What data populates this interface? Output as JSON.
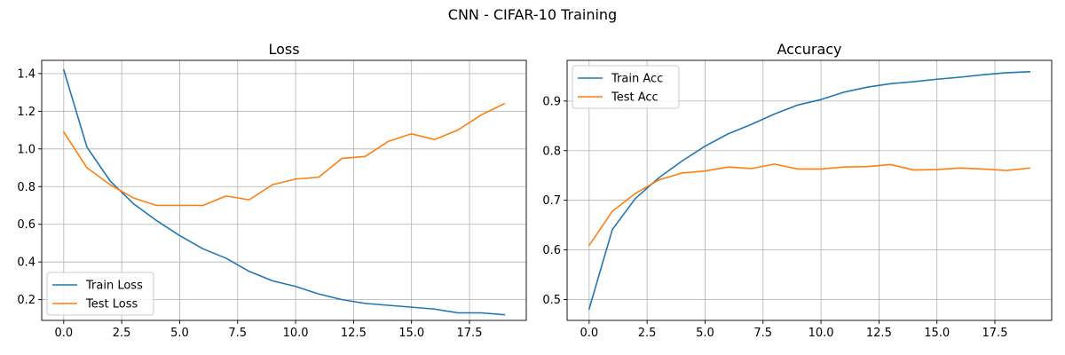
{
  "figure": {
    "suptitle": "CNN - CIFAR-10 Training"
  },
  "chart_data": [
    {
      "type": "line",
      "title": "Loss",
      "xlabel": "",
      "ylabel": "",
      "x": [
        0,
        1,
        2,
        3,
        4,
        5,
        6,
        7,
        8,
        9,
        10,
        11,
        12,
        13,
        14,
        15,
        16,
        17,
        18,
        19
      ],
      "xlim": [
        -0.95,
        19.95
      ],
      "ylim": [
        0.09,
        1.47
      ],
      "xticks": [
        0,
        2.5,
        5,
        7.5,
        10,
        12.5,
        15,
        17.5
      ],
      "xtick_labels": [
        "0.0",
        "2.5",
        "5.0",
        "7.5",
        "10.0",
        "12.5",
        "15.0",
        "17.5"
      ],
      "yticks": [
        0.2,
        0.4,
        0.6,
        0.8,
        1.0,
        1.2,
        1.4
      ],
      "ytick_labels": [
        "0.2",
        "0.4",
        "0.6",
        "0.8",
        "1.0",
        "1.2",
        "1.4"
      ],
      "grid": true,
      "legend_position": "lower-left",
      "series": [
        {
          "name": "Train Loss",
          "color": "#1f77b4",
          "values": [
            1.42,
            1.01,
            0.83,
            0.71,
            0.62,
            0.54,
            0.47,
            0.42,
            0.35,
            0.3,
            0.27,
            0.23,
            0.2,
            0.18,
            0.17,
            0.16,
            0.15,
            0.13,
            0.13,
            0.12
          ]
        },
        {
          "name": "Test Loss",
          "color": "#ff7f0e",
          "values": [
            1.09,
            0.9,
            0.81,
            0.74,
            0.7,
            0.7,
            0.7,
            0.75,
            0.73,
            0.81,
            0.84,
            0.85,
            0.95,
            0.96,
            1.04,
            1.08,
            1.05,
            1.1,
            1.18,
            1.24
          ]
        }
      ]
    },
    {
      "type": "line",
      "title": "Accuracy",
      "xlabel": "",
      "ylabel": "",
      "x": [
        0,
        1,
        2,
        3,
        4,
        5,
        6,
        7,
        8,
        9,
        10,
        11,
        12,
        13,
        14,
        15,
        16,
        17,
        18,
        19
      ],
      "xlim": [
        -0.95,
        19.95
      ],
      "ylim": [
        0.458,
        0.982
      ],
      "xticks": [
        0,
        2.5,
        5,
        7.5,
        10,
        12.5,
        15,
        17.5
      ],
      "xtick_labels": [
        "0.0",
        "2.5",
        "5.0",
        "7.5",
        "10.0",
        "12.5",
        "15.0",
        "17.5"
      ],
      "yticks": [
        0.5,
        0.6,
        0.7,
        0.8,
        0.9
      ],
      "ytick_labels": [
        "0.5",
        "0.6",
        "0.7",
        "0.8",
        "0.9"
      ],
      "grid": true,
      "legend_position": "upper-left",
      "series": [
        {
          "name": "Train Acc",
          "color": "#1f77b4",
          "values": [
            0.481,
            0.641,
            0.704,
            0.745,
            0.779,
            0.809,
            0.834,
            0.853,
            0.874,
            0.892,
            0.903,
            0.918,
            0.928,
            0.935,
            0.939,
            0.944,
            0.948,
            0.953,
            0.957,
            0.959
          ]
        },
        {
          "name": "Test Acc",
          "color": "#ff7f0e",
          "values": [
            0.609,
            0.678,
            0.714,
            0.741,
            0.755,
            0.759,
            0.767,
            0.764,
            0.773,
            0.763,
            0.763,
            0.767,
            0.768,
            0.772,
            0.761,
            0.762,
            0.765,
            0.763,
            0.76,
            0.765
          ]
        }
      ]
    }
  ]
}
